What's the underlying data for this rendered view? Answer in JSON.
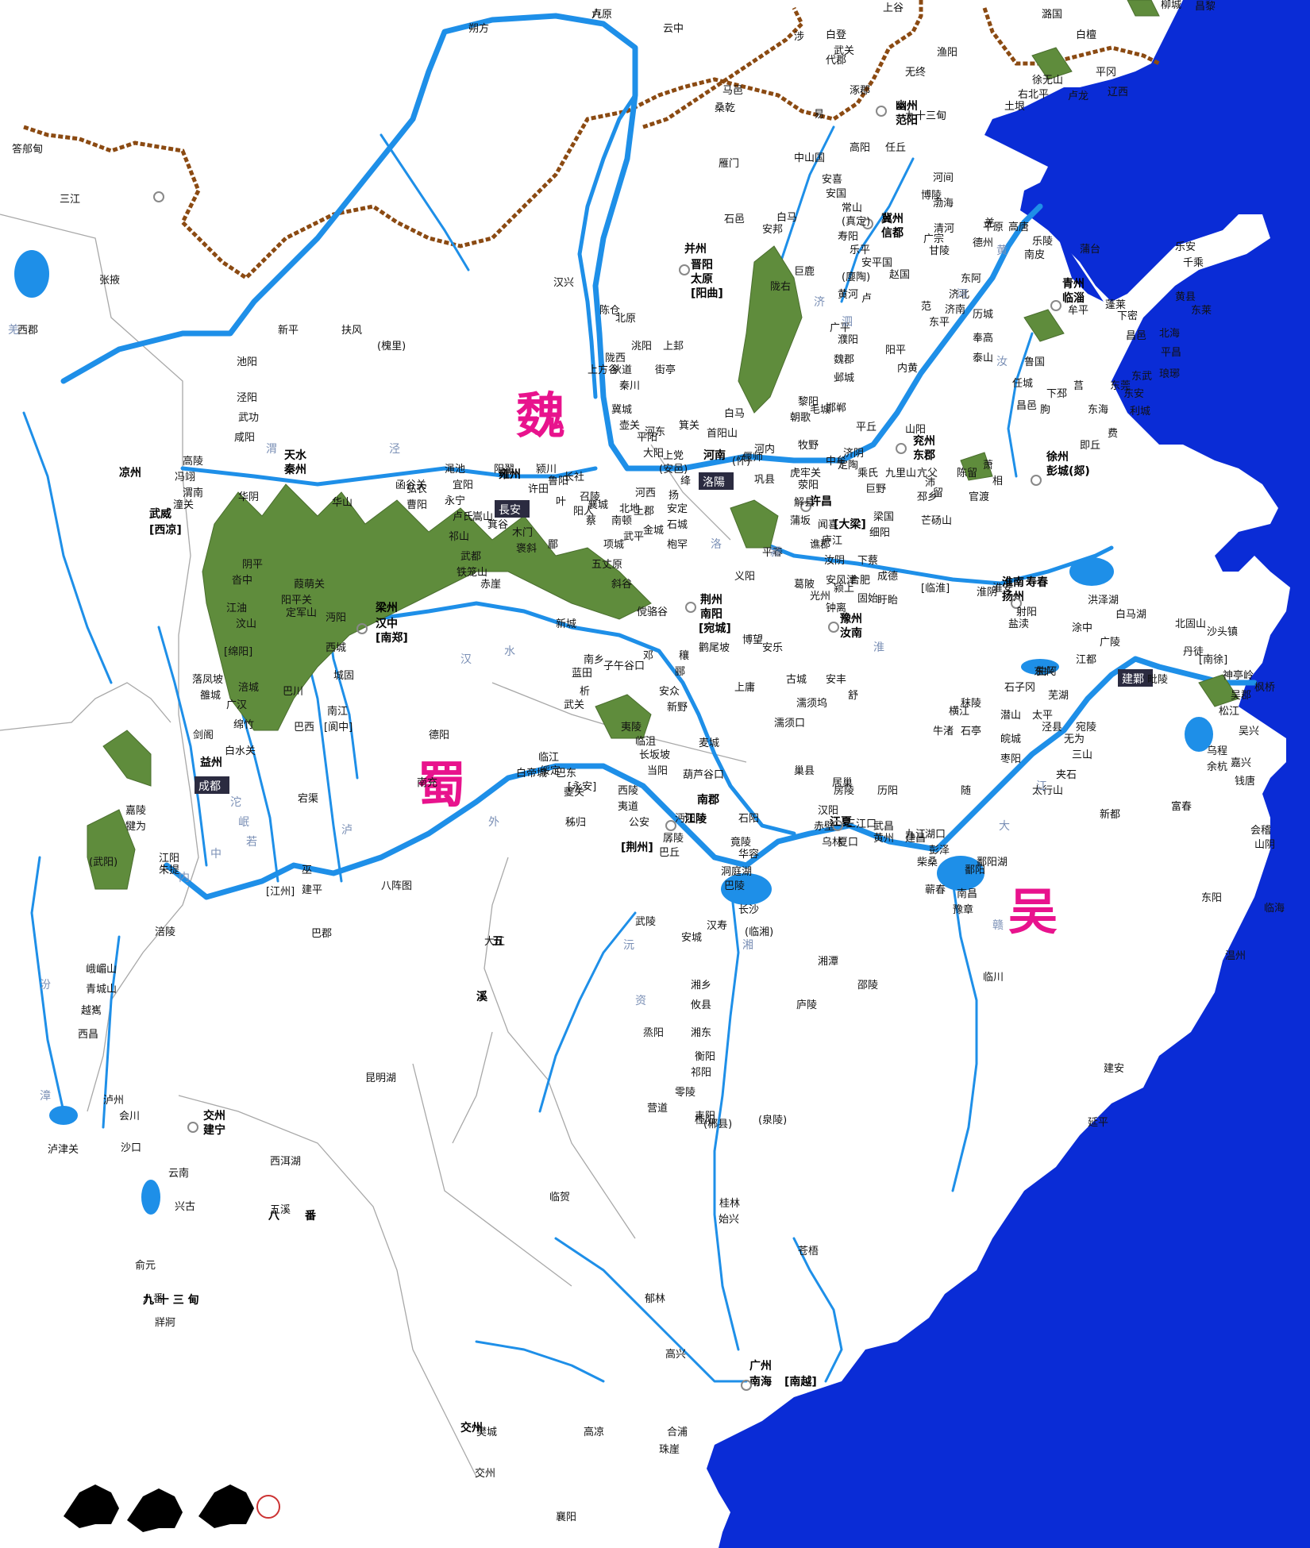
{
  "colors": {
    "sea": "#0a2cd6",
    "river": "#1e8fe8",
    "wall": "#8b4a12",
    "border": "#a8a8a8",
    "kingdom": "#e8138d",
    "mountain": "#5f8c3c"
  },
  "kingdoms": [
    {
      "name": "魏"
    },
    {
      "name": "蜀"
    },
    {
      "name": "吴"
    }
  ],
  "capitals": [
    {
      "name": "長安"
    },
    {
      "name": "洛陽"
    },
    {
      "name": "成都"
    },
    {
      "name": "建鄴"
    }
  ],
  "province_seats": [
    {
      "name": "凉州"
    },
    {
      "name": "武威"
    },
    {
      "name": "[西凉]"
    },
    {
      "name": "并州"
    },
    {
      "name": "晋阳"
    },
    {
      "name": "太原"
    },
    {
      "name": "[阳曲]"
    },
    {
      "name": "幽州"
    },
    {
      "name": "范阳"
    },
    {
      "name": "冀州"
    },
    {
      "name": "信都"
    },
    {
      "name": "青州"
    },
    {
      "name": "临淄"
    },
    {
      "name": "兖州"
    },
    {
      "name": "东郡"
    },
    {
      "name": "徐州"
    },
    {
      "name": "彭城(郯)"
    },
    {
      "name": "雍州"
    },
    {
      "name": "河南"
    },
    {
      "name": "天水"
    },
    {
      "name": "秦州"
    },
    {
      "name": "许昌"
    },
    {
      "name": "[大梁]"
    },
    {
      "name": "荆州"
    },
    {
      "name": "南阳"
    },
    {
      "name": "[宛城]"
    },
    {
      "name": "豫州"
    },
    {
      "name": "汝南"
    },
    {
      "name": "淮南"
    },
    {
      "name": "扬州"
    },
    {
      "name": "寿春"
    },
    {
      "name": "梁州"
    },
    {
      "name": "汉中"
    },
    {
      "name": "[南郑]"
    },
    {
      "name": "益州"
    },
    {
      "name": "南郡"
    },
    {
      "name": "江陵"
    },
    {
      "name": "[荆州]"
    },
    {
      "name": "江夏"
    },
    {
      "name": "交州"
    },
    {
      "name": "建宁"
    },
    {
      "name": "广州"
    },
    {
      "name": "南海"
    },
    {
      "name": "[南越]"
    }
  ],
  "places": [
    {
      "name": "九原"
    },
    {
      "name": "云中"
    },
    {
      "name": "朔方"
    },
    {
      "name": "白登"
    },
    {
      "name": "代郡"
    },
    {
      "name": "上谷"
    },
    {
      "name": "无终"
    },
    {
      "name": "渔阳"
    },
    {
      "name": "潞国"
    },
    {
      "name": "白檀"
    },
    {
      "name": "平冈"
    },
    {
      "name": "卢龙"
    },
    {
      "name": "土垠"
    },
    {
      "name": "右北平"
    },
    {
      "name": "辽西"
    },
    {
      "name": "徐无山"
    },
    {
      "name": "柳城"
    },
    {
      "name": "昌黎"
    },
    {
      "name": "马邑"
    },
    {
      "name": "桑乾"
    },
    {
      "name": "涿郡"
    },
    {
      "name": "易"
    },
    {
      "name": "高阳"
    },
    {
      "name": "任丘"
    },
    {
      "name": "中山国"
    },
    {
      "name": "雁门"
    },
    {
      "name": "安喜"
    },
    {
      "name": "河间"
    },
    {
      "name": "渤海"
    },
    {
      "name": "安国"
    },
    {
      "name": "博陵"
    },
    {
      "name": "常山"
    },
    {
      "name": "(真定)"
    },
    {
      "name": "安邦"
    },
    {
      "name": "石邑"
    },
    {
      "name": "白马"
    },
    {
      "name": "寿阳"
    },
    {
      "name": "乐平"
    },
    {
      "name": "安平国"
    },
    {
      "name": "巨鹿"
    },
    {
      "name": "(廮陶)"
    },
    {
      "name": "赵国"
    },
    {
      "name": "广宗"
    },
    {
      "name": "清河"
    },
    {
      "name": "甘陵"
    },
    {
      "name": "德州"
    },
    {
      "name": "平原"
    },
    {
      "name": "高唐"
    },
    {
      "name": "南皮"
    },
    {
      "name": "乐陵"
    },
    {
      "name": "蒲台"
    },
    {
      "name": "乐安"
    },
    {
      "name": "千乘"
    },
    {
      "name": "黄县"
    },
    {
      "name": "东莱"
    },
    {
      "name": "蓬莱"
    },
    {
      "name": "牟平"
    },
    {
      "name": "下密"
    },
    {
      "name": "昌邑"
    },
    {
      "name": "北海"
    },
    {
      "name": "平昌"
    },
    {
      "name": "琅琊"
    },
    {
      "name": "东武"
    },
    {
      "name": "东安"
    },
    {
      "name": "利城"
    },
    {
      "name": "即丘"
    },
    {
      "name": "费"
    },
    {
      "name": "东海"
    },
    {
      "name": "朐"
    },
    {
      "name": "下邳"
    },
    {
      "name": "东莞"
    },
    {
      "name": "莒"
    },
    {
      "name": "昌邑"
    },
    {
      "name": "任城"
    },
    {
      "name": "鲁国"
    },
    {
      "name": "泰山"
    },
    {
      "name": "奉高"
    },
    {
      "name": "历城"
    },
    {
      "name": "济南"
    },
    {
      "name": "济北"
    },
    {
      "name": "东阿"
    },
    {
      "name": "东平"
    },
    {
      "name": "范"
    },
    {
      "name": "卢"
    },
    {
      "name": "阳平"
    },
    {
      "name": "内黄"
    },
    {
      "name": "魏郡"
    },
    {
      "name": "邺城"
    },
    {
      "name": "邯郸"
    },
    {
      "name": "毛城"
    },
    {
      "name": "广平"
    },
    {
      "name": "濮阳"
    },
    {
      "name": "黎阳"
    },
    {
      "name": "朝歌"
    },
    {
      "name": "白马"
    },
    {
      "name": "河内"
    },
    {
      "name": "(怀)"
    },
    {
      "name": "牧野"
    },
    {
      "name": "平丘"
    },
    {
      "name": "济阴"
    },
    {
      "name": "定陶"
    },
    {
      "name": "乘氏"
    },
    {
      "name": "巨野"
    },
    {
      "name": "山阳"
    },
    {
      "name": "亢父"
    },
    {
      "name": "沛"
    },
    {
      "name": "萧"
    },
    {
      "name": "相"
    },
    {
      "name": "留"
    },
    {
      "name": "邳乡"
    },
    {
      "name": "梁国"
    },
    {
      "name": "芒砀山"
    },
    {
      "name": "九里山"
    },
    {
      "name": "陈留"
    },
    {
      "name": "官渡"
    },
    {
      "name": "中牟"
    },
    {
      "name": "荥阳"
    },
    {
      "name": "虎牢关"
    },
    {
      "name": "巩县"
    },
    {
      "name": "偃师"
    },
    {
      "name": "首阳山"
    },
    {
      "name": "河东"
    },
    {
      "name": "(安邑)"
    },
    {
      "name": "大阳"
    },
    {
      "name": "解县"
    },
    {
      "name": "蒲坂"
    },
    {
      "name": "闻喜"
    },
    {
      "name": "箕关"
    },
    {
      "name": "上党"
    },
    {
      "name": "壶关"
    },
    {
      "name": "平阳"
    },
    {
      "name": "绛"
    },
    {
      "name": "扬"
    },
    {
      "name": "河西"
    },
    {
      "name": "上郡"
    },
    {
      "name": "北地"
    },
    {
      "name": "安定"
    },
    {
      "name": "石城"
    },
    {
      "name": "金城"
    },
    {
      "name": "枹罕"
    },
    {
      "name": "狄道"
    },
    {
      "name": "街亭"
    },
    {
      "name": "秦川"
    },
    {
      "name": "陇西"
    },
    {
      "name": "洮阳"
    },
    {
      "name": "北原"
    },
    {
      "name": "上邽"
    },
    {
      "name": "冀城"
    },
    {
      "name": "上方谷"
    },
    {
      "name": "陈仓"
    },
    {
      "name": "汉兴"
    },
    {
      "name": "扶风"
    },
    {
      "name": "(槐里)"
    },
    {
      "name": "新平"
    },
    {
      "name": "池阳"
    },
    {
      "name": "泾阳"
    },
    {
      "name": "武功"
    },
    {
      "name": "咸阳"
    },
    {
      "name": "高陵"
    },
    {
      "name": "冯翊"
    },
    {
      "name": "渭南"
    },
    {
      "name": "潼关"
    },
    {
      "name": "华阴"
    },
    {
      "name": "华山"
    },
    {
      "name": "函谷关"
    },
    {
      "name": "弘农"
    },
    {
      "name": "曹阳"
    },
    {
      "name": "渑池"
    },
    {
      "name": "宜阳"
    },
    {
      "name": "永宁"
    },
    {
      "name": "卢氏"
    },
    {
      "name": "嵩山"
    },
    {
      "name": "阳翟"
    },
    {
      "name": "颍川"
    },
    {
      "name": "许田"
    },
    {
      "name": "长社"
    },
    {
      "name": "召陵"
    },
    {
      "name": "阳人"
    },
    {
      "name": "鲁阳"
    },
    {
      "name": "叶"
    },
    {
      "name": "襄城"
    },
    {
      "name": "蔡"
    },
    {
      "name": "南顿"
    },
    {
      "name": "项城"
    },
    {
      "name": "武平"
    },
    {
      "name": "谯郡"
    },
    {
      "name": "细阳"
    },
    {
      "name": "汝阴"
    },
    {
      "name": "颍上"
    },
    {
      "name": "下蔡"
    },
    {
      "name": "安风津"
    },
    {
      "name": "庐江"
    },
    {
      "name": "合肥"
    },
    {
      "name": "成德"
    },
    {
      "name": "钟离"
    },
    {
      "name": "盱眙"
    },
    {
      "name": "[临淮]"
    },
    {
      "name": "淮阴"
    },
    {
      "name": "淮安"
    },
    {
      "name": "射阳"
    },
    {
      "name": "盐渎"
    },
    {
      "name": "白马湖"
    },
    {
      "name": "洪泽湖"
    },
    {
      "name": "涂中"
    },
    {
      "name": "广陵"
    },
    {
      "name": "江都"
    },
    {
      "name": "曲阿"
    },
    {
      "name": "北固山"
    },
    {
      "name": "沙头镇"
    },
    {
      "name": "丹徒"
    },
    {
      "name": "[南徐]"
    },
    {
      "name": "毗陵"
    },
    {
      "name": "神亭岭"
    },
    {
      "name": "枫桥"
    },
    {
      "name": "吴郡"
    },
    {
      "name": "松江"
    },
    {
      "name": "吴兴"
    },
    {
      "name": "乌程"
    },
    {
      "name": "嘉兴"
    },
    {
      "name": "余杭"
    },
    {
      "name": "钱唐"
    },
    {
      "name": "富春"
    },
    {
      "name": "会稽"
    },
    {
      "name": "山阴"
    },
    {
      "name": "东阳"
    },
    {
      "name": "临海"
    },
    {
      "name": "温州"
    },
    {
      "name": "新都"
    },
    {
      "name": "建安"
    },
    {
      "name": "延平"
    },
    {
      "name": "临川"
    },
    {
      "name": "南昌"
    },
    {
      "name": "豫章"
    },
    {
      "name": "鄱阳"
    },
    {
      "name": "鄱阳湖"
    },
    {
      "name": "湖口"
    },
    {
      "name": "彭泽"
    },
    {
      "name": "柴桑"
    },
    {
      "name": "九江"
    },
    {
      "name": "蕲春"
    },
    {
      "name": "建昌"
    },
    {
      "name": "黄州"
    },
    {
      "name": "武昌"
    },
    {
      "name": "三江口"
    },
    {
      "name": "夏口"
    },
    {
      "name": "乌林"
    },
    {
      "name": "赤壁"
    },
    {
      "name": "汉阳"
    },
    {
      "name": "石阳"
    },
    {
      "name": "竟陵"
    },
    {
      "name": "华容"
    },
    {
      "name": "沔阳"
    },
    {
      "name": "麦城"
    },
    {
      "name": "葫芦谷口"
    },
    {
      "name": "当阳"
    },
    {
      "name": "长坂坡"
    },
    {
      "name": "临沮"
    },
    {
      "name": "夷陵"
    },
    {
      "name": "西陵"
    },
    {
      "name": "夷道"
    },
    {
      "name": "公安"
    },
    {
      "name": "孱陵"
    },
    {
      "name": "巴丘"
    },
    {
      "name": "巴陵"
    },
    {
      "name": "洞庭湖"
    },
    {
      "name": "长沙"
    },
    {
      "name": "(临湘)"
    },
    {
      "name": "汉寿"
    },
    {
      "name": "武陵"
    },
    {
      "name": "安城"
    },
    {
      "name": "湘潭"
    },
    {
      "name": "湘乡"
    },
    {
      "name": "攸县"
    },
    {
      "name": "庐陵"
    },
    {
      "name": "邵陵"
    },
    {
      "name": "烝阳"
    },
    {
      "name": "湘东"
    },
    {
      "name": "衡阳"
    },
    {
      "name": "祁阳"
    },
    {
      "name": "零陵"
    },
    {
      "name": "(泉陵)"
    },
    {
      "name": "耒阳"
    },
    {
      "name": "营道"
    },
    {
      "name": "桂阳"
    },
    {
      "name": "(郴县)"
    },
    {
      "name": "桂林"
    },
    {
      "name": "始兴"
    },
    {
      "name": "临贺"
    },
    {
      "name": "苍梧"
    },
    {
      "name": "郁林"
    },
    {
      "name": "高兴"
    },
    {
      "name": "高凉"
    },
    {
      "name": "合浦"
    },
    {
      "name": "珠崖"
    },
    {
      "name": "交州"
    },
    {
      "name": "襄阳"
    },
    {
      "name": "樊城"
    },
    {
      "name": "新野"
    },
    {
      "name": "安众"
    },
    {
      "name": "穰"
    },
    {
      "name": "邓"
    },
    {
      "name": "郦"
    },
    {
      "name": "鹳尾坡"
    },
    {
      "name": "博望"
    },
    {
      "name": "安乐"
    },
    {
      "name": "古城"
    },
    {
      "name": "葛陂"
    },
    {
      "name": "义阳"
    },
    {
      "name": "平春"
    },
    {
      "name": "光州"
    },
    {
      "name": "固始"
    },
    {
      "name": "安丰"
    },
    {
      "name": "舒"
    },
    {
      "name": "巢县"
    },
    {
      "name": "居巢"
    },
    {
      "name": "历阳"
    },
    {
      "name": "濡须坞"
    },
    {
      "name": "濡须口"
    },
    {
      "name": "横江"
    },
    {
      "name": "牛渚"
    },
    {
      "name": "秣陵"
    },
    {
      "name": "石子冈"
    },
    {
      "name": "东兴"
    },
    {
      "name": "芜湖"
    },
    {
      "name": "太平"
    },
    {
      "name": "泾县"
    },
    {
      "name": "宛陵"
    },
    {
      "name": "无为"
    },
    {
      "name": "三山"
    },
    {
      "name": "夹石"
    },
    {
      "name": "石亭"
    },
    {
      "name": "潜山"
    },
    {
      "name": "皖城"
    },
    {
      "name": "枣阳"
    },
    {
      "name": "随"
    },
    {
      "name": "上庸"
    },
    {
      "name": "房陵"
    },
    {
      "name": "新城"
    },
    {
      "name": "南乡"
    },
    {
      "name": "析"
    },
    {
      "name": "武关"
    },
    {
      "name": "蓝田"
    },
    {
      "name": "子午谷口"
    },
    {
      "name": "傥骆谷"
    },
    {
      "name": "斜谷"
    },
    {
      "name": "五丈原"
    },
    {
      "name": "郿"
    },
    {
      "name": "褒斜"
    },
    {
      "name": "箕谷"
    },
    {
      "name": "赤崖"
    },
    {
      "name": "铁笼山"
    },
    {
      "name": "祁山"
    },
    {
      "name": "木门"
    },
    {
      "name": "武都"
    },
    {
      "name": "阴平"
    },
    {
      "name": "沓中"
    },
    {
      "name": "汶山"
    },
    {
      "name": "江油"
    },
    {
      "name": "[绵阳]"
    },
    {
      "name": "涪城"
    },
    {
      "name": "绵竹"
    },
    {
      "name": "雒城"
    },
    {
      "name": "落凤坡"
    },
    {
      "name": "广汉"
    },
    {
      "name": "剑阁"
    },
    {
      "name": "白水关"
    },
    {
      "name": "葭萌关"
    },
    {
      "name": "阳平关"
    },
    {
      "name": "定军山"
    },
    {
      "name": "沔阳"
    },
    {
      "name": "西城"
    },
    {
      "name": "城固"
    },
    {
      "name": "南江"
    },
    {
      "name": "[阆中]"
    },
    {
      "name": "巴西"
    },
    {
      "name": "巴川"
    },
    {
      "name": "宕渠"
    },
    {
      "name": "南充"
    },
    {
      "name": "德阳"
    },
    {
      "name": "临江"
    },
    {
      "name": "绥定"
    },
    {
      "name": "巴东"
    },
    {
      "name": "白帝城"
    },
    {
      "name": "[永安]"
    },
    {
      "name": "夔关"
    },
    {
      "name": "秭归"
    },
    {
      "name": "巫"
    },
    {
      "name": "建平"
    },
    {
      "name": "八阵图"
    },
    {
      "name": "巴郡"
    },
    {
      "name": "[江州]"
    },
    {
      "name": "涪陵"
    },
    {
      "name": "江阳"
    },
    {
      "name": "朱提"
    },
    {
      "name": "嘉陵"
    },
    {
      "name": "犍为"
    },
    {
      "name": "(武阳)"
    },
    {
      "name": "峨嵋山"
    },
    {
      "name": "青城山"
    },
    {
      "name": "越嶲"
    },
    {
      "name": "西昌"
    },
    {
      "name": "泸州"
    },
    {
      "name": "会川"
    },
    {
      "name": "泸津关"
    },
    {
      "name": "沙口"
    },
    {
      "name": "西洱湖"
    },
    {
      "name": "云南"
    },
    {
      "name": "兴古"
    },
    {
      "name": "昆明湖"
    },
    {
      "name": "俞元"
    },
    {
      "name": "牂牁"
    },
    {
      "name": "答郍甸"
    },
    {
      "name": "三江"
    },
    {
      "name": "张掖"
    },
    {
      "name": "西郡"
    },
    {
      "name": "陇右"
    },
    {
      "name": "羌"
    },
    {
      "name": "太行山"
    },
    {
      "name": "黄河"
    },
    {
      "name": "大江"
    },
    {
      "name": "五溪"
    },
    {
      "name": "八番"
    },
    {
      "name": "九十三甸"
    },
    {
      "name": "涉"
    },
    {
      "name": "武关"
    },
    {
      "name": "卢"
    }
  ],
  "region_labels": [
    {
      "name": "羌"
    },
    {
      "name": "五"
    },
    {
      "name": "溪"
    },
    {
      "name": "八"
    },
    {
      "name": "番"
    },
    {
      "name": "九 十 三 甸"
    },
    {
      "name": "交州"
    }
  ],
  "river_labels": [
    {
      "name": "黄"
    },
    {
      "name": "河"
    },
    {
      "name": "大"
    },
    {
      "name": "江"
    },
    {
      "name": "汉"
    },
    {
      "name": "水"
    },
    {
      "name": "淮"
    },
    {
      "name": "沱"
    },
    {
      "name": "岷"
    },
    {
      "name": "湘"
    },
    {
      "name": "资"
    },
    {
      "name": "沅"
    },
    {
      "name": "赣"
    },
    {
      "name": "渭"
    },
    {
      "name": "泾"
    },
    {
      "name": "洛"
    },
    {
      "name": "颍"
    },
    {
      "name": "汝"
    },
    {
      "name": "泗"
    },
    {
      "name": "济"
    },
    {
      "name": "漳"
    },
    {
      "name": "汾"
    },
    {
      "name": "泸"
    },
    {
      "name": "若"
    },
    {
      "name": "内"
    },
    {
      "name": "中"
    },
    {
      "name": "外"
    }
  ]
}
